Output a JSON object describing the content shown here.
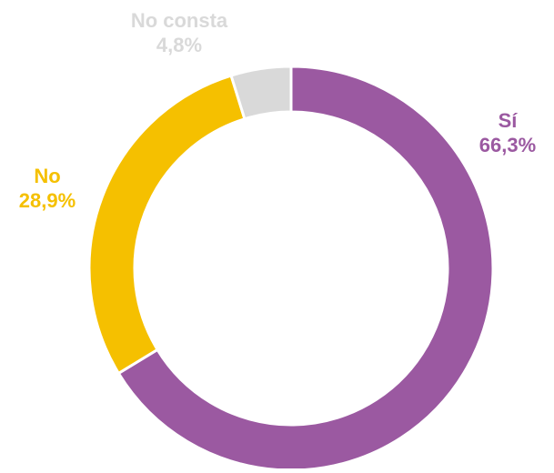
{
  "chart_data": {
    "type": "pie",
    "variant": "donut",
    "slices": [
      {
        "label": "Sí",
        "value": 66.3,
        "display": "66,3%",
        "color": "#9b59a1"
      },
      {
        "label": "No",
        "value": 28.9,
        "display": "28,9%",
        "color": "#f5c000"
      },
      {
        "label": "No consta",
        "value": 4.8,
        "display": "4,8%",
        "color": "#d9d9d9"
      }
    ],
    "legend": "none",
    "slice_order": "clockwise from top"
  }
}
